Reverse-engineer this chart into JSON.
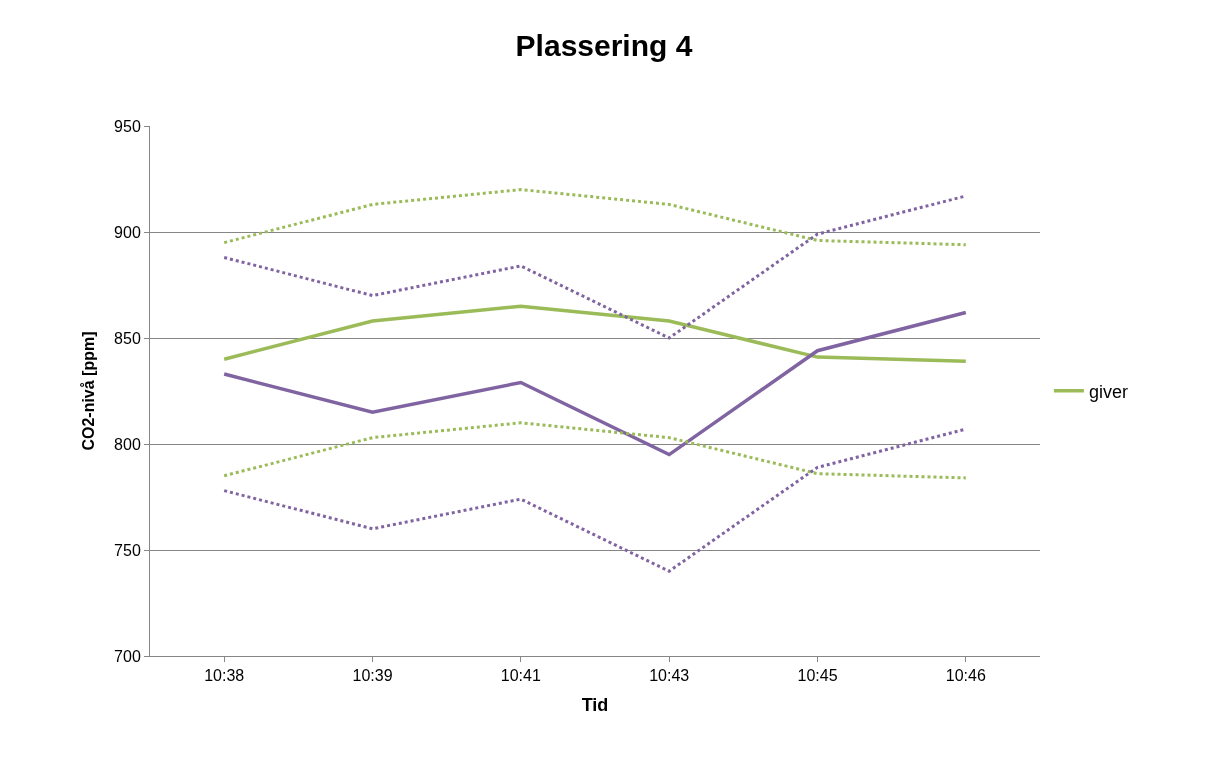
{
  "chart_data": {
    "type": "line",
    "title": "Plassering 4",
    "xlabel": "Tid",
    "ylabel": "CO2-nivå [ppm]",
    "categories": [
      "10:38",
      "10:39",
      "10:41",
      "10:43",
      "10:45",
      "10:46"
    ],
    "series": [
      {
        "name": "giver",
        "color": "#9bbb59",
        "values": [
          840,
          858,
          865,
          858,
          841,
          839
        ]
      },
      {
        "color": "#8064a2",
        "values": [
          833,
          815,
          829,
          795,
          844,
          862
        ]
      },
      {
        "color": "#9bbb59",
        "line_style": "dotted",
        "values": [
          895,
          913,
          920,
          913,
          896,
          894
        ]
      },
      {
        "color": "#9bbb59",
        "line_style": "dotted",
        "values": [
          785,
          803,
          810,
          803,
          786,
          784
        ]
      },
      {
        "color": "#8064a2",
        "line_style": "dotted",
        "values": [
          888,
          870,
          884,
          850,
          899,
          917
        ]
      },
      {
        "color": "#8064a2",
        "line_style": "dotted",
        "values": [
          778,
          760,
          774,
          740,
          789,
          807
        ]
      }
    ],
    "ylim": [
      700,
      950
    ],
    "yticks": [
      700,
      750,
      800,
      850,
      900,
      950
    ],
    "grid": "y",
    "legend": "right",
    "marker": "none",
    "line_style": "solid"
  }
}
